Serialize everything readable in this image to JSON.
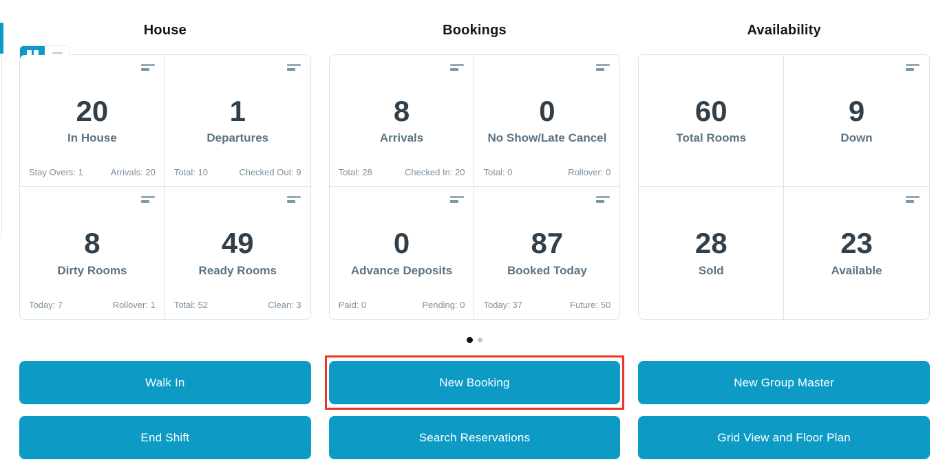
{
  "view_toggle": {
    "grid": {
      "name": "grid-view",
      "active": true
    },
    "list": {
      "name": "list-view",
      "active": false
    }
  },
  "sections": [
    {
      "title": "House",
      "cards": [
        {
          "value": "20",
          "label": "In House",
          "menu": true,
          "stats": [
            "Stay Overs: 1",
            "Arrivals: 20"
          ]
        },
        {
          "value": "1",
          "label": "Departures",
          "menu": true,
          "stats": [
            "Total: 10",
            "Checked Out: 9"
          ]
        },
        {
          "value": "8",
          "label": "Dirty Rooms",
          "menu": true,
          "stats": [
            "Today: 7",
            "Rollover: 1"
          ]
        },
        {
          "value": "49",
          "label": "Ready Rooms",
          "menu": true,
          "stats": [
            "Total: 52",
            "Clean: 3"
          ]
        }
      ]
    },
    {
      "title": "Bookings",
      "cards": [
        {
          "value": "8",
          "label": "Arrivals",
          "menu": true,
          "stats": [
            "Total: 28",
            "Checked In: 20"
          ]
        },
        {
          "value": "0",
          "label": "No Show/Late Cancel",
          "menu": true,
          "stats": [
            "Total: 0",
            "Rollover: 0"
          ]
        },
        {
          "value": "0",
          "label": "Advance Deposits",
          "menu": true,
          "stats": [
            "Paid: 0",
            "Pending: 0"
          ]
        },
        {
          "value": "87",
          "label": "Booked Today",
          "menu": true,
          "stats": [
            "Today: 37",
            "Future: 50"
          ]
        }
      ]
    },
    {
      "title": "Availability",
      "cards": [
        {
          "value": "60",
          "label": "Total Rooms",
          "menu": false,
          "stats": []
        },
        {
          "value": "9",
          "label": "Down",
          "menu": true,
          "stats": []
        },
        {
          "value": "28",
          "label": "Sold",
          "menu": false,
          "stats": []
        },
        {
          "value": "23",
          "label": "Available",
          "menu": true,
          "stats": []
        }
      ]
    }
  ],
  "carousel": {
    "dots": [
      {
        "active": true
      },
      {
        "active": false
      }
    ]
  },
  "action_rows": [
    [
      {
        "label": "Walk In",
        "highlighted": false
      },
      {
        "label": "New Booking",
        "highlighted": true
      },
      {
        "label": "New Group Master",
        "highlighted": false
      }
    ],
    [
      {
        "label": "End Shift",
        "highlighted": false
      },
      {
        "label": "Search Reservations",
        "highlighted": false
      },
      {
        "label": "Grid View and Floor Plan",
        "highlighted": false
      }
    ]
  ],
  "colors": {
    "accent_blue": "#0d9bc5",
    "highlight_red": "#ed3428",
    "value_text": "#333f48",
    "label_text": "#5b7484",
    "stat_text": "#7d8f9d",
    "panel_border": "#dbe2e8"
  }
}
